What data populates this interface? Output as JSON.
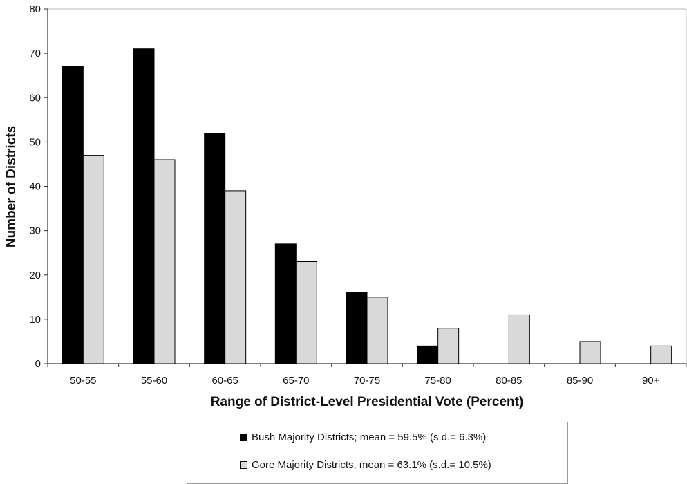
{
  "chart_data": {
    "type": "bar",
    "categories": [
      "50-55",
      "55-60",
      "60-65",
      "65-70",
      "70-75",
      "75-80",
      "80-85",
      "85-90",
      "90+"
    ],
    "series": [
      {
        "name": "Bush Majority Districts; mean = 59.5% (s.d.= 6.3%)",
        "color": "#000000",
        "values": [
          67,
          71,
          52,
          27,
          16,
          4,
          0,
          0,
          0
        ]
      },
      {
        "name": "Gore Majority Districts, mean = 63.1% (s.d.= 10.5%)",
        "color": "#d9d9d9",
        "values": [
          47,
          46,
          39,
          23,
          15,
          8,
          11,
          5,
          4
        ]
      }
    ],
    "title": "",
    "xlabel": "Range of District-Level Presidential Vote (Percent)",
    "ylabel": "Number of Districts",
    "ylim": [
      0,
      80
    ],
    "yticks": [
      "0",
      "10",
      "20",
      "30",
      "40",
      "50",
      "60",
      "70",
      "80"
    ],
    "grid": false,
    "legend_position": "bottom"
  }
}
